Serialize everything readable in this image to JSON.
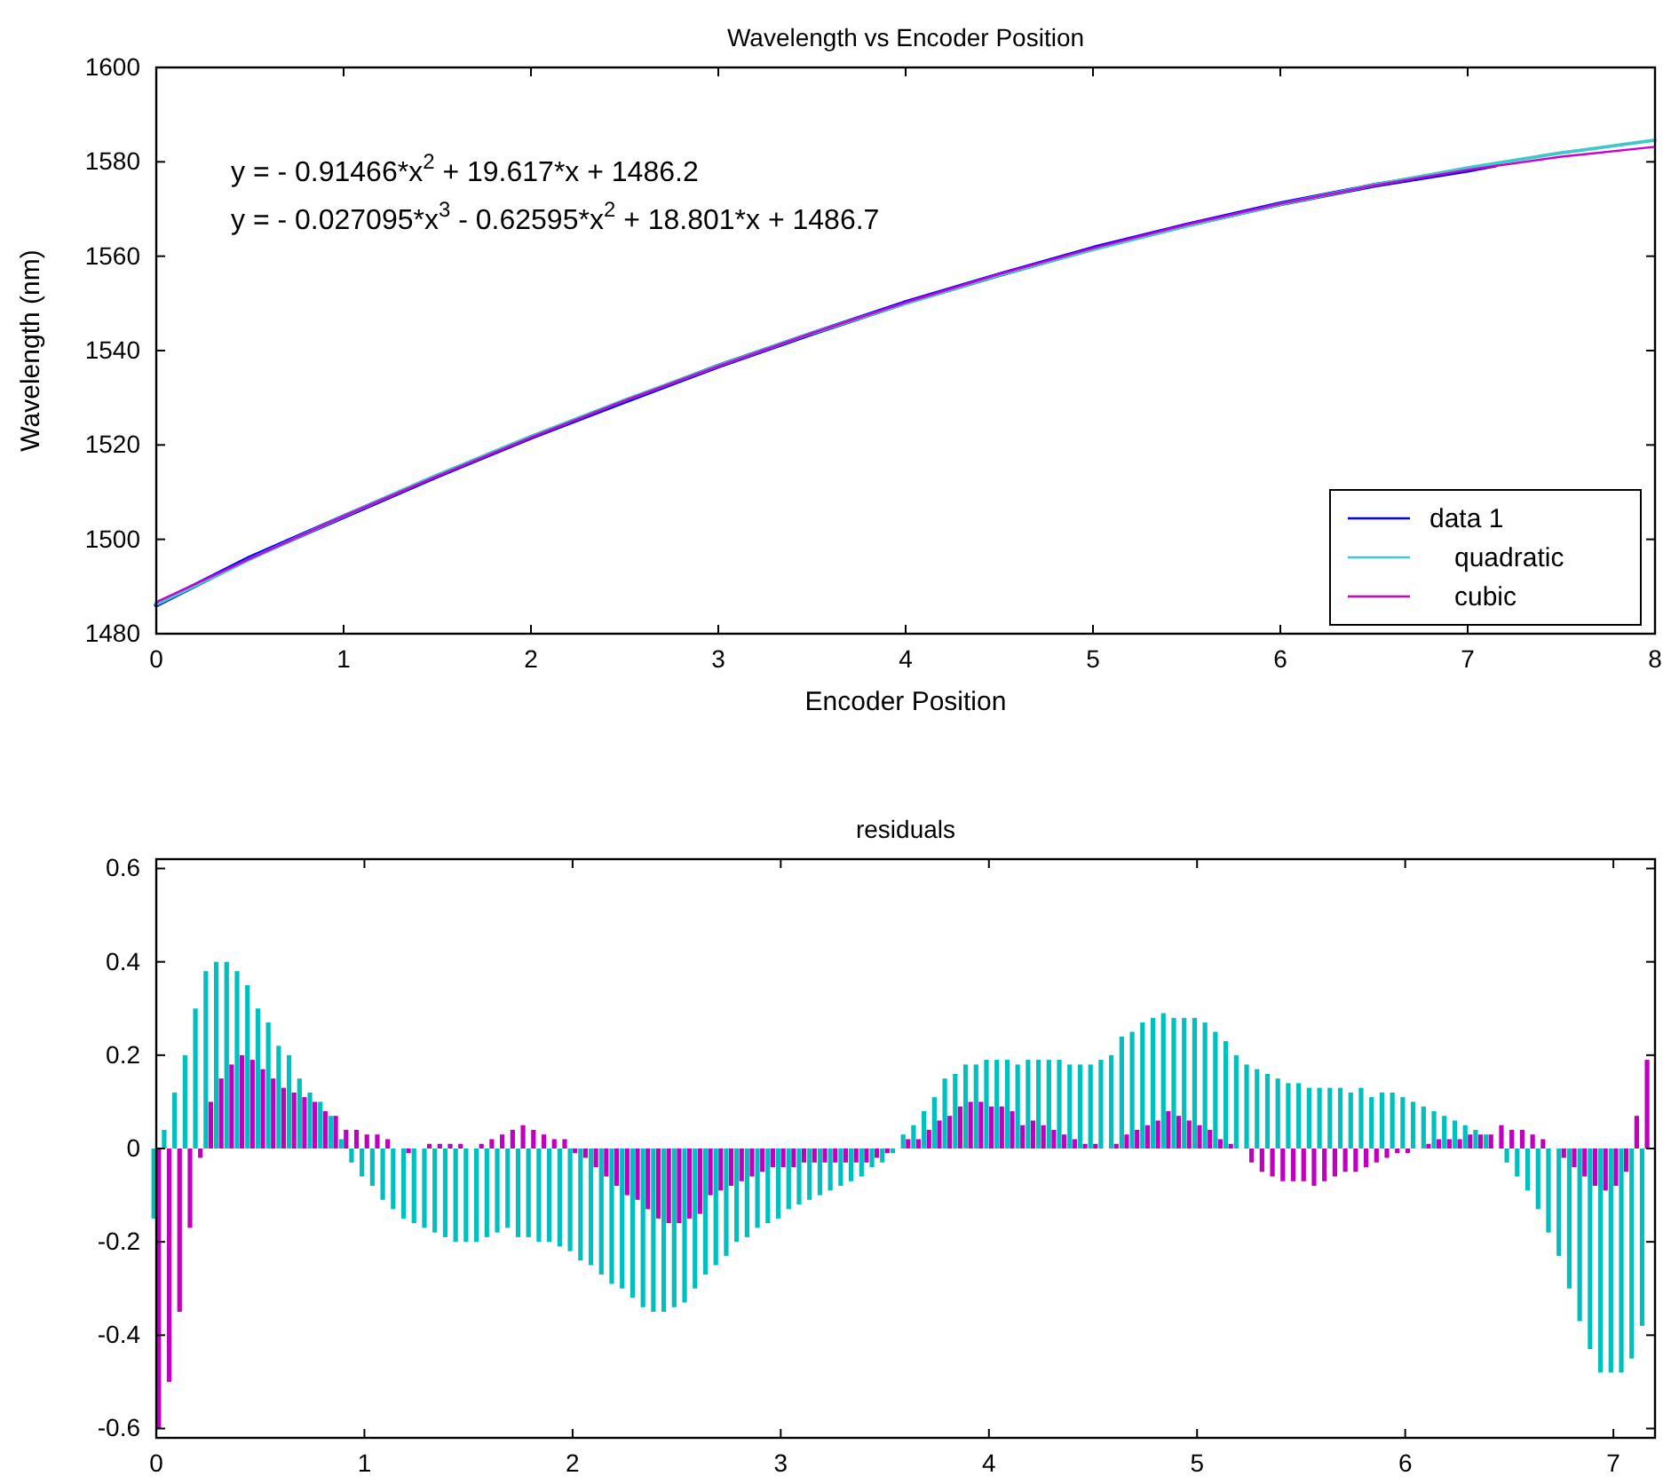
{
  "chart_data": [
    {
      "type": "line",
      "title": "Wavelength vs Encoder Position",
      "xlabel": "Encoder Position",
      "ylabel": "Wavelength (nm)",
      "xlim": [
        0,
        8
      ],
      "ylim": [
        1480,
        1600
      ],
      "xticks": [
        0,
        1,
        2,
        3,
        4,
        5,
        6,
        7,
        8
      ],
      "yticks": [
        1480,
        1500,
        1520,
        1540,
        1560,
        1580,
        1600
      ],
      "legend": "bottom right",
      "annotations": [
        "y = - 0.91466*x$^{2}$ + 19.617*x + 1486.2",
        "y = - 0.027095*x$^{3}$ - 0.62595*x$^{2}$ + 18.801*x + 1486.7"
      ],
      "series": [
        {
          "name": "data 1",
          "color": "#0000ff",
          "x": [
            0,
            0.5,
            1,
            1.5,
            2,
            2.5,
            3,
            3.5,
            4,
            4.5,
            5,
            5.5,
            6,
            6.5,
            7,
            7.15
          ],
          "values": [
            1486.1,
            1496.1,
            1504.8,
            1513.4,
            1521.6,
            1529.2,
            1536.7,
            1543.6,
            1550.2,
            1556.1,
            1561.7,
            1566.6,
            1571.1,
            1575.0,
            1578.2,
            1579.3
          ]
        },
        {
          "name": "quadratic",
          "color": "#40c8c8",
          "x": [
            0,
            0.5,
            1,
            1.5,
            2,
            2.5,
            3,
            3.5,
            4,
            4.5,
            5,
            5.5,
            6,
            6.5,
            7,
            7.5,
            8
          ],
          "values": [
            1486.2,
            1495.8,
            1504.9,
            1513.6,
            1521.8,
            1529.5,
            1536.8,
            1543.7,
            1550.0,
            1556.0,
            1561.4,
            1566.4,
            1571.0,
            1575.1,
            1578.7,
            1581.9,
            1584.6
          ]
        },
        {
          "name": "cubic",
          "color": "#cc00cc",
          "x": [
            0,
            0.5,
            1,
            1.5,
            2,
            2.5,
            3,
            3.5,
            4,
            4.5,
            5,
            5.5,
            6,
            6.5,
            7,
            7.5,
            8
          ],
          "values": [
            1486.7,
            1495.9,
            1504.9,
            1513.4,
            1521.6,
            1529.4,
            1536.7,
            1543.7,
            1550.2,
            1556.2,
            1561.7,
            1566.7,
            1571.1,
            1575.0,
            1578.3,
            1581.1,
            1583.2
          ]
        }
      ]
    },
    {
      "type": "bar",
      "title": "residuals",
      "xlim": [
        0,
        7.2
      ],
      "ylim": [
        -0.62,
        0.62
      ],
      "xticks": [
        0,
        1,
        2,
        3,
        4,
        5,
        6,
        7
      ],
      "yticks": [
        -0.6,
        -0.4,
        -0.2,
        0,
        0.2,
        0.4,
        0.6
      ],
      "series": [
        {
          "color": "#00bfbf",
          "x": [
            0,
            0.05,
            0.1,
            0.15,
            0.2,
            0.25,
            0.3,
            0.35,
            0.4,
            0.45,
            0.5,
            0.55,
            0.6,
            0.65,
            0.7,
            0.75,
            0.8,
            0.85,
            0.9,
            0.95,
            1,
            1.05,
            1.1,
            1.15,
            1.2,
            1.25,
            1.3,
            1.35,
            1.4,
            1.45,
            1.5,
            1.55,
            1.6,
            1.65,
            1.7,
            1.75,
            1.8,
            1.85,
            1.9,
            1.95,
            2,
            2.05,
            2.1,
            2.15,
            2.2,
            2.25,
            2.3,
            2.35,
            2.4,
            2.45,
            2.5,
            2.55,
            2.6,
            2.65,
            2.7,
            2.75,
            2.8,
            2.85,
            2.9,
            2.95,
            3,
            3.05,
            3.1,
            3.15,
            3.2,
            3.25,
            3.3,
            3.35,
            3.4,
            3.45,
            3.5,
            3.55,
            3.6,
            3.65,
            3.7,
            3.75,
            3.8,
            3.85,
            3.9,
            3.95,
            4,
            4.05,
            4.1,
            4.15,
            4.2,
            4.25,
            4.3,
            4.35,
            4.4,
            4.45,
            4.5,
            4.55,
            4.6,
            4.65,
            4.7,
            4.75,
            4.8,
            4.85,
            4.9,
            4.95,
            5,
            5.05,
            5.1,
            5.15,
            5.2,
            5.25,
            5.3,
            5.35,
            5.4,
            5.45,
            5.5,
            5.55,
            5.6,
            5.65,
            5.7,
            5.75,
            5.8,
            5.85,
            5.9,
            5.95,
            6,
            6.05,
            6.1,
            6.15,
            6.2,
            6.25,
            6.3,
            6.35,
            6.4,
            6.45,
            6.5,
            6.55,
            6.6,
            6.65,
            6.7,
            6.75,
            6.8,
            6.85,
            6.9,
            6.95,
            7,
            7.05,
            7.1,
            7.15
          ],
          "values": [
            -0.15,
            0.04,
            0.12,
            0.2,
            0.3,
            0.38,
            0.4,
            0.4,
            0.38,
            0.35,
            0.3,
            0.27,
            0.22,
            0.2,
            0.15,
            0.12,
            0.1,
            0.07,
            0.02,
            -0.03,
            -0.06,
            -0.08,
            -0.11,
            -0.13,
            -0.15,
            -0.16,
            -0.17,
            -0.18,
            -0.19,
            -0.2,
            -0.2,
            -0.2,
            -0.19,
            -0.18,
            -0.17,
            -0.19,
            -0.19,
            -0.2,
            -0.2,
            -0.21,
            -0.22,
            -0.24,
            -0.25,
            -0.27,
            -0.29,
            -0.3,
            -0.32,
            -0.34,
            -0.35,
            -0.35,
            -0.34,
            -0.33,
            -0.3,
            -0.27,
            -0.25,
            -0.23,
            -0.2,
            -0.19,
            -0.17,
            -0.16,
            -0.15,
            -0.13,
            -0.12,
            -0.11,
            -0.1,
            -0.09,
            -0.08,
            -0.07,
            -0.06,
            -0.04,
            -0.03,
            -0.01,
            0.03,
            0.05,
            0.08,
            0.11,
            0.15,
            0.16,
            0.18,
            0.18,
            0.19,
            0.19,
            0.19,
            0.18,
            0.19,
            0.19,
            0.19,
            0.19,
            0.18,
            0.18,
            0.18,
            0.19,
            0.2,
            0.24,
            0.25,
            0.27,
            0.28,
            0.29,
            0.28,
            0.28,
            0.28,
            0.27,
            0.25,
            0.23,
            0.2,
            0.18,
            0.17,
            0.16,
            0.15,
            0.14,
            0.14,
            0.13,
            0.13,
            0.13,
            0.13,
            0.12,
            0.13,
            0.11,
            0.12,
            0.12,
            0.11,
            0.1,
            0.09,
            0.08,
            0.07,
            0.06,
            0.05,
            0.04,
            0.03,
            0.0,
            -0.03,
            -0.06,
            -0.09,
            -0.13,
            -0.18,
            -0.23,
            -0.3,
            -0.37,
            -0.43,
            -0.48,
            -0.48,
            -0.48,
            -0.45,
            -0.38
          ]
        },
        {
          "color": "#bf00bf",
          "x": [
            0,
            0.05,
            0.1,
            0.15,
            0.2,
            0.25,
            0.3,
            0.35,
            0.4,
            0.45,
            0.5,
            0.55,
            0.6,
            0.65,
            0.7,
            0.75,
            0.8,
            0.85,
            0.9,
            0.95,
            1,
            1.05,
            1.1,
            1.15,
            1.2,
            1.25,
            1.3,
            1.35,
            1.4,
            1.45,
            1.5,
            1.55,
            1.6,
            1.65,
            1.7,
            1.75,
            1.8,
            1.85,
            1.9,
            1.95,
            2,
            2.05,
            2.1,
            2.15,
            2.2,
            2.25,
            2.3,
            2.35,
            2.4,
            2.45,
            2.5,
            2.55,
            2.6,
            2.65,
            2.7,
            2.75,
            2.8,
            2.85,
            2.9,
            2.95,
            3,
            3.05,
            3.1,
            3.15,
            3.2,
            3.25,
            3.3,
            3.35,
            3.4,
            3.45,
            3.5,
            3.55,
            3.6,
            3.65,
            3.7,
            3.75,
            3.8,
            3.85,
            3.9,
            3.95,
            4,
            4.05,
            4.1,
            4.15,
            4.2,
            4.25,
            4.3,
            4.35,
            4.4,
            4.45,
            4.5,
            4.55,
            4.6,
            4.65,
            4.7,
            4.75,
            4.8,
            4.85,
            4.9,
            4.95,
            5,
            5.05,
            5.1,
            5.15,
            5.2,
            5.25,
            5.3,
            5.35,
            5.4,
            5.45,
            5.5,
            5.55,
            5.6,
            5.65,
            5.7,
            5.75,
            5.8,
            5.85,
            5.9,
            5.95,
            6,
            6.05,
            6.1,
            6.15,
            6.2,
            6.25,
            6.3,
            6.35,
            6.4,
            6.45,
            6.5,
            6.55,
            6.6,
            6.65,
            6.7,
            6.75,
            6.8,
            6.85,
            6.9,
            6.95,
            7,
            7.05,
            7.1,
            7.15
          ],
          "values": [
            -0.6,
            -0.5,
            -0.35,
            -0.17,
            -0.02,
            0.1,
            0.15,
            0.18,
            0.2,
            0.19,
            0.17,
            0.15,
            0.13,
            0.12,
            0.11,
            0.1,
            0.08,
            0.07,
            0.04,
            0.04,
            0.03,
            0.03,
            0.02,
            0.0,
            -0.01,
            0.0,
            0.01,
            0.01,
            0.01,
            0.01,
            0.0,
            0.01,
            0.02,
            0.03,
            0.04,
            0.05,
            0.04,
            0.03,
            0.02,
            0.02,
            -0.01,
            -0.02,
            -0.04,
            -0.06,
            -0.08,
            -0.1,
            -0.11,
            -0.13,
            -0.15,
            -0.16,
            -0.16,
            -0.15,
            -0.14,
            -0.1,
            -0.09,
            -0.08,
            -0.07,
            -0.06,
            -0.05,
            -0.04,
            -0.04,
            -0.04,
            -0.03,
            -0.03,
            -0.03,
            -0.03,
            -0.03,
            -0.03,
            -0.03,
            -0.02,
            -0.01,
            0.0,
            0.02,
            0.02,
            0.04,
            0.06,
            0.07,
            0.09,
            0.1,
            0.1,
            0.09,
            0.09,
            0.08,
            0.05,
            0.06,
            0.05,
            0.04,
            0.03,
            0.02,
            0.01,
            0.01,
            0.0,
            0.01,
            0.03,
            0.04,
            0.05,
            0.06,
            0.08,
            0.07,
            0.06,
            0.05,
            0.04,
            0.02,
            0.01,
            0.0,
            -0.03,
            -0.05,
            -0.06,
            -0.07,
            -0.07,
            -0.07,
            -0.08,
            -0.07,
            -0.06,
            -0.05,
            -0.05,
            -0.04,
            -0.03,
            -0.02,
            -0.01,
            -0.01,
            0.0,
            0.01,
            0.02,
            0.02,
            0.02,
            0.03,
            0.03,
            0.03,
            0.05,
            0.04,
            0.04,
            0.03,
            0.02,
            0.0,
            -0.02,
            -0.04,
            -0.06,
            -0.08,
            -0.09,
            -0.08,
            -0.05,
            0.07,
            0.19
          ]
        }
      ]
    }
  ]
}
